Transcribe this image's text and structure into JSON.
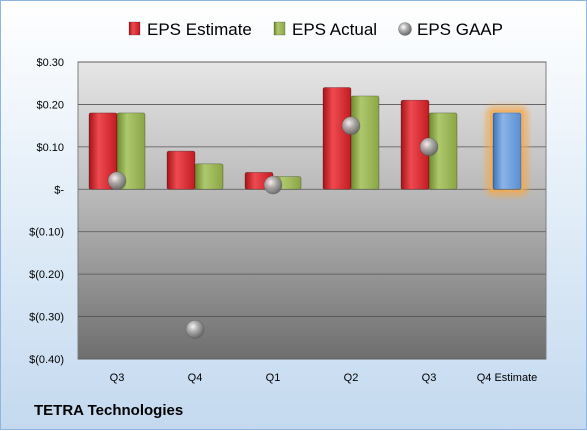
{
  "company": "TETRA Technologies",
  "chart_data": {
    "type": "bar",
    "categories": [
      "Q3",
      "Q4",
      "Q1",
      "Q2",
      "Q3",
      "Q4 Estimate"
    ],
    "series": [
      {
        "name": "EPS Estimate",
        "type": "bar",
        "color": "#d81f26",
        "values": [
          0.18,
          0.09,
          0.04,
          0.24,
          0.21,
          null
        ]
      },
      {
        "name": "EPS Actual",
        "type": "bar",
        "color": "#8fac4a",
        "values": [
          0.18,
          0.06,
          0.03,
          0.22,
          0.18,
          0.18
        ]
      },
      {
        "name": "EPS GAAP",
        "type": "scatter",
        "color": "#9a9a9a",
        "values": [
          0.02,
          -0.33,
          0.01,
          0.15,
          0.1,
          null
        ]
      }
    ],
    "highlight": {
      "category": "Q4 Estimate",
      "value": 0.18,
      "color": "#5b8fd0",
      "glow": "#f5a94a"
    },
    "ylim": [
      -0.4,
      0.3
    ],
    "yticks": [
      0.3,
      0.2,
      0.1,
      0,
      -0.1,
      -0.2,
      -0.3,
      -0.4
    ],
    "ytick_labels": [
      "$0.30",
      "$0.20",
      "$0.10",
      "$-",
      "$(0.10)",
      "$(0.20)",
      "$(0.30)",
      "$(0.40)"
    ],
    "legend_position": "top",
    "grid": true,
    "xlabel": "",
    "ylabel": ""
  }
}
